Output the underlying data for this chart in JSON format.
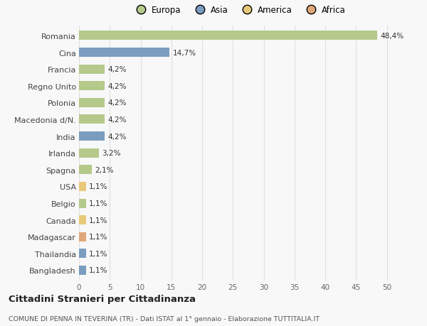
{
  "countries": [
    "Romania",
    "Cina",
    "Francia",
    "Regno Unito",
    "Polonia",
    "Macedonia d/N.",
    "India",
    "Irlanda",
    "Spagna",
    "USA",
    "Belgio",
    "Canada",
    "Madagascar",
    "Thailandia",
    "Bangladesh"
  ],
  "values": [
    48.4,
    14.7,
    4.2,
    4.2,
    4.2,
    4.2,
    4.2,
    3.2,
    2.1,
    1.1,
    1.1,
    1.1,
    1.1,
    1.1,
    1.1
  ],
  "labels": [
    "48,4%",
    "14,7%",
    "4,2%",
    "4,2%",
    "4,2%",
    "4,2%",
    "4,2%",
    "3,2%",
    "2,1%",
    "1,1%",
    "1,1%",
    "1,1%",
    "1,1%",
    "1,1%",
    "1,1%"
  ],
  "colors": [
    "#b5c98a",
    "#7b9dc0",
    "#b5c98a",
    "#b5c98a",
    "#b5c98a",
    "#b5c98a",
    "#7b9dc0",
    "#b5c98a",
    "#b5c98a",
    "#e8c97a",
    "#b5c98a",
    "#e8c97a",
    "#e0a87a",
    "#7b9dc0",
    "#7b9dc0"
  ],
  "legend_labels": [
    "Europa",
    "Asia",
    "America",
    "Africa"
  ],
  "legend_colors": [
    "#b5c98a",
    "#7b9dc0",
    "#e8c97a",
    "#e0a87a"
  ],
  "title": "Cittadini Stranieri per Cittadinanza",
  "subtitle": "COMUNE DI PENNA IN TEVERINA (TR) - Dati ISTAT al 1° gennaio - Elaborazione TUTTITALIA.IT",
  "xlim": [
    0,
    52
  ],
  "xticks": [
    0,
    5,
    10,
    15,
    20,
    25,
    30,
    35,
    40,
    45,
    50
  ],
  "bg_color": "#f8f8f8",
  "grid_color": "#e0e0e0"
}
